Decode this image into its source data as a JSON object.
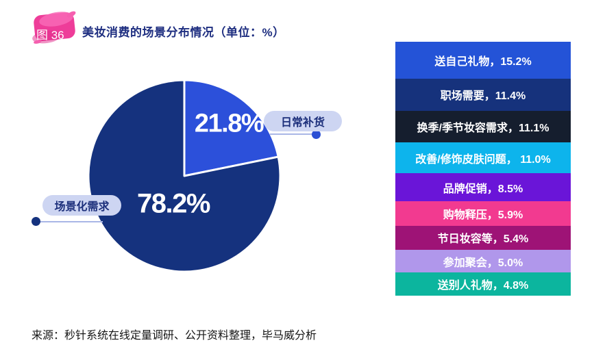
{
  "header": {
    "figure_badge": "图 36",
    "title": "美妆消费的场景分布情况（单位：%）"
  },
  "chart_data": {
    "type": "pie",
    "title": "美妆消费的场景分布情况",
    "unit": "%",
    "pie": {
      "start_angle_deg": 0,
      "direction": "clockwise",
      "slices": [
        {
          "label": "日常补货",
          "value": 21.8,
          "display": "21.8%",
          "color": "#2C50DA"
        },
        {
          "label": "场景化需求",
          "value": 78.2,
          "display": "78.2%",
          "color": "#15327E"
        }
      ]
    },
    "breakdown_bars": {
      "items": [
        {
          "label": "送自己礼物",
          "value": 15.2,
          "text": "送自己礼物，15.2%",
          "color": "#2453D7"
        },
        {
          "label": "职场需要",
          "value": 11.4,
          "text": "职场需要，11.4%",
          "color": "#16327C"
        },
        {
          "label": "换季/季节妆容需求",
          "value": 11.1,
          "text": "换季/季节妆容需求，11.1%",
          "color": "#151E2E"
        },
        {
          "label": "改善/修饰皮肤问题",
          "value": 11.0,
          "text": "改善/修饰皮肤问题， 11.0%",
          "color": "#0DB4EC"
        },
        {
          "label": "品牌促销",
          "value": 8.5,
          "text": "品牌促销，8.5%",
          "color": "#6A15D8"
        },
        {
          "label": "购物释压",
          "value": 5.9,
          "text": "购物释压，5.9%",
          "color": "#F23A90"
        },
        {
          "label": "节日妆容等",
          "value": 5.4,
          "text": "节日妆容等，5.4%",
          "color": "#9E1376"
        },
        {
          "label": "参加聚会",
          "value": 5.0,
          "text": "参加聚会，5.0%",
          "color": "#B097EB"
        },
        {
          "label": "送别人礼物",
          "value": 4.8,
          "text": "送别人礼物，4.8%",
          "color": "#0CB59E"
        }
      ]
    },
    "legend_position": "none",
    "grid": false
  },
  "colors": {
    "title_text": "#1E2E80",
    "pill_background": "#CDD5F2",
    "pill_text": "#1C2F7B",
    "connector_line": "#A9B6E6",
    "dot_daily": "#2B4FD4",
    "dot_scenario": "#15327E",
    "badge_pink": "#EE3D99",
    "slice_separator": "#FFFFFF"
  },
  "source": "来源：秒针系统在线定量调研、公开资料整理，毕马威分析"
}
